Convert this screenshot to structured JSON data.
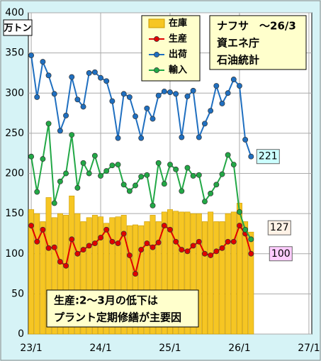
{
  "chart_data": {
    "type": "combo",
    "title": "ナフサ　～26/3",
    "subtitle": [
      "資エネ庁",
      "石油統計"
    ],
    "y_label": "万トン",
    "annotation": [
      "生産:2～3月の低下は",
      "プラント定期修繕が主要因"
    ],
    "categories": [
      "23/1",
      null,
      null,
      null,
      null,
      null,
      null,
      null,
      null,
      null,
      null,
      null,
      "24/1",
      null,
      null,
      null,
      null,
      null,
      null,
      null,
      null,
      null,
      null,
      null,
      "25/1",
      null,
      null,
      null,
      null,
      null,
      null,
      null,
      null,
      null,
      null,
      null,
      "26/1",
      null,
      null,
      null,
      null,
      null,
      null,
      null,
      null,
      null,
      null,
      null,
      "27/1"
    ],
    "ylim": [
      0,
      400
    ],
    "yticks": [
      0,
      50,
      100,
      150,
      200,
      250,
      300,
      350,
      400
    ],
    "grid": true,
    "legend": "top",
    "series": [
      {
        "name": "在庫",
        "kind": "bar",
        "color": "#f6c623",
        "values": [
          155,
          150,
          140,
          170,
          145,
          150,
          148,
          172,
          150,
          140,
          145,
          148,
          146,
          138,
          145,
          146,
          148,
          135,
          136,
          135,
          140,
          148,
          140,
          152,
          155,
          153,
          152,
          152,
          150,
          150,
          140,
          152,
          140,
          140,
          150,
          152,
          163,
          140,
          127,
          null,
          null,
          null,
          null,
          null,
          null,
          null,
          null,
          null,
          null
        ]
      },
      {
        "name": "生産",
        "kind": "line",
        "color": "#e00000",
        "values": [
          135,
          115,
          130,
          107,
          108,
          90,
          85,
          118,
          100,
          105,
          110,
          113,
          120,
          130,
          115,
          113,
          125,
          98,
          75,
          105,
          113,
          108,
          114,
          135,
          130,
          115,
          105,
          103,
          110,
          115,
          100,
          98,
          103,
          107,
          115,
          115,
          135,
          125,
          100,
          null,
          null,
          null,
          null,
          null,
          null,
          null,
          null,
          null,
          null
        ]
      },
      {
        "name": "出荷",
        "kind": "line",
        "color": "#1f6fc0",
        "values": [
          347,
          295,
          339,
          322,
          299,
          253,
          272,
          320,
          292,
          283,
          325,
          326,
          319,
          315,
          290,
          244,
          299,
          295,
          271,
          244,
          281,
          268,
          297,
          302,
          301,
          299,
          245,
          296,
          303,
          245,
          262,
          278,
          309,
          287,
          300,
          317,
          309,
          242,
          221,
          null,
          null,
          null,
          null,
          null,
          null,
          null,
          null,
          null,
          null
        ]
      },
      {
        "name": "輸入",
        "kind": "line",
        "color": "#22a846",
        "values": [
          221,
          177,
          218,
          262,
          163,
          190,
          200,
          248,
          182,
          213,
          200,
          222,
          197,
          203,
          210,
          211,
          186,
          178,
          185,
          196,
          198,
          160,
          213,
          187,
          211,
          205,
          178,
          207,
          197,
          198,
          165,
          175,
          186,
          199,
          223,
          211,
          152,
          130,
          118,
          null,
          null,
          null,
          null,
          null,
          null,
          null,
          null,
          null,
          null
        ]
      }
    ]
  }
}
